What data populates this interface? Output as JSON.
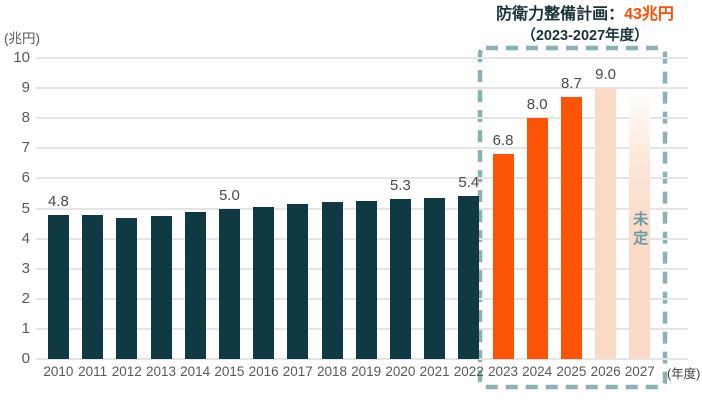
{
  "header": {
    "plan_label_prefix": "防衛力整備計画：",
    "plan_label_value": "43兆円",
    "plan_period": "（2023-2027年度）"
  },
  "chart_data": {
    "type": "bar",
    "title": "防衛力整備計画：43兆円（2023-2027年度）",
    "ylabel": "(兆円)",
    "xlabel": "(年度)",
    "ylim": [
      0,
      10
    ],
    "y_ticks": [
      0,
      1,
      2,
      3,
      4,
      5,
      6,
      7,
      8,
      9,
      10
    ],
    "grid": true,
    "categories": [
      "2010",
      "2011",
      "2012",
      "2013",
      "2014",
      "2015",
      "2016",
      "2017",
      "2018",
      "2019",
      "2020",
      "2021",
      "2022",
      "2023",
      "2024",
      "2025",
      "2026",
      "2027"
    ],
    "values": [
      4.8,
      4.8,
      4.7,
      4.75,
      4.9,
      5.0,
      5.05,
      5.15,
      5.2,
      5.25,
      5.3,
      5.35,
      5.4,
      6.8,
      8.0,
      8.7,
      9.0,
      null
    ],
    "data_labels": [
      "4.8",
      "",
      "",
      "",
      "",
      "5.0",
      "",
      "",
      "",
      "",
      "5.3",
      "",
      "5.4",
      "6.8",
      "8.0",
      "8.7",
      "9.0",
      ""
    ],
    "bar_styles": [
      "dark",
      "dark",
      "dark",
      "dark",
      "dark",
      "dark",
      "dark",
      "dark",
      "dark",
      "dark",
      "dark",
      "dark",
      "dark",
      "orange",
      "orange",
      "orange",
      "peach",
      "fade"
    ],
    "undecided": {
      "year": "2027",
      "label": "未定",
      "approx_height": 8.85
    },
    "highlight_range": "2023-2027",
    "colors": {
      "bar_dark": "#103a43",
      "bar_orange": "#fc5305",
      "bar_peach": "#fbdac7",
      "highlight_border": "#8cb1b5",
      "undecided_text": "#689aa3",
      "accent_orange": "#fc4f04",
      "gridline": "#e5e5e5",
      "axis_text": "#595959"
    }
  }
}
